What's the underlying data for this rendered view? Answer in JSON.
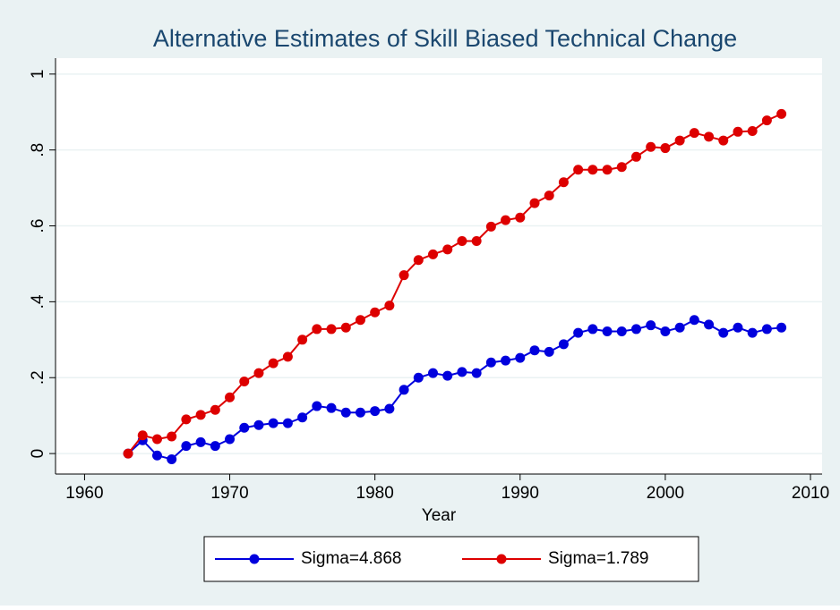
{
  "chart_data": {
    "type": "line",
    "title": "Alternative Estimates of Skill Biased Technical Change",
    "x_label": "Year",
    "x": [
      1963,
      1964,
      1965,
      1966,
      1967,
      1968,
      1969,
      1970,
      1971,
      1972,
      1973,
      1974,
      1975,
      1976,
      1977,
      1978,
      1979,
      1980,
      1981,
      1982,
      1983,
      1984,
      1985,
      1986,
      1987,
      1988,
      1989,
      1990,
      1991,
      1992,
      1993,
      1994,
      1995,
      1996,
      1997,
      1998,
      1999,
      2000,
      2001,
      2002,
      2003,
      2004,
      2005,
      2006,
      2007,
      2008
    ],
    "series": [
      {
        "name": "Sigma=4.868",
        "color": "#0000dd",
        "values": [
          0,
          0.035,
          -0.005,
          -0.015,
          0.02,
          0.03,
          0.02,
          0.038,
          0.068,
          0.075,
          0.08,
          0.08,
          0.095,
          0.125,
          0.12,
          0.108,
          0.108,
          0.112,
          0.118,
          0.168,
          0.2,
          0.212,
          0.205,
          0.215,
          0.212,
          0.24,
          0.245,
          0.252,
          0.272,
          0.268,
          0.288,
          0.318,
          0.328,
          0.322,
          0.322,
          0.328,
          0.338,
          0.322,
          0.332,
          0.352,
          0.34,
          0.318,
          0.332,
          0.318,
          0.328,
          0.332
        ]
      },
      {
        "name": "Sigma=1.789",
        "color": "#dd0000",
        "values": [
          0,
          0.048,
          0.038,
          0.045,
          0.09,
          0.102,
          0.115,
          0.148,
          0.19,
          0.212,
          0.238,
          0.255,
          0.3,
          0.328,
          0.328,
          0.332,
          0.352,
          0.372,
          0.39,
          0.47,
          0.51,
          0.525,
          0.538,
          0.56,
          0.56,
          0.598,
          0.615,
          0.622,
          0.66,
          0.68,
          0.715,
          0.748,
          0.748,
          0.748,
          0.755,
          0.782,
          0.808,
          0.805,
          0.825,
          0.845,
          0.835,
          0.825,
          0.848,
          0.85,
          0.878,
          0.895
        ]
      }
    ],
    "xlim": [
      1958,
      2010.8
    ],
    "xticks": [
      1960,
      1970,
      1980,
      1990,
      2000,
      2010
    ],
    "ylim": [
      -0.054,
      1.042
    ],
    "yticks": [
      0,
      {
        "value": 0.2,
        "label": ".2"
      },
      {
        "value": 0.4,
        "label": ".4"
      },
      {
        "value": 0.6,
        "label": ".6"
      },
      {
        "value": 0.8,
        "label": ".8"
      },
      1
    ],
    "grid": true,
    "legend": "bottom"
  }
}
